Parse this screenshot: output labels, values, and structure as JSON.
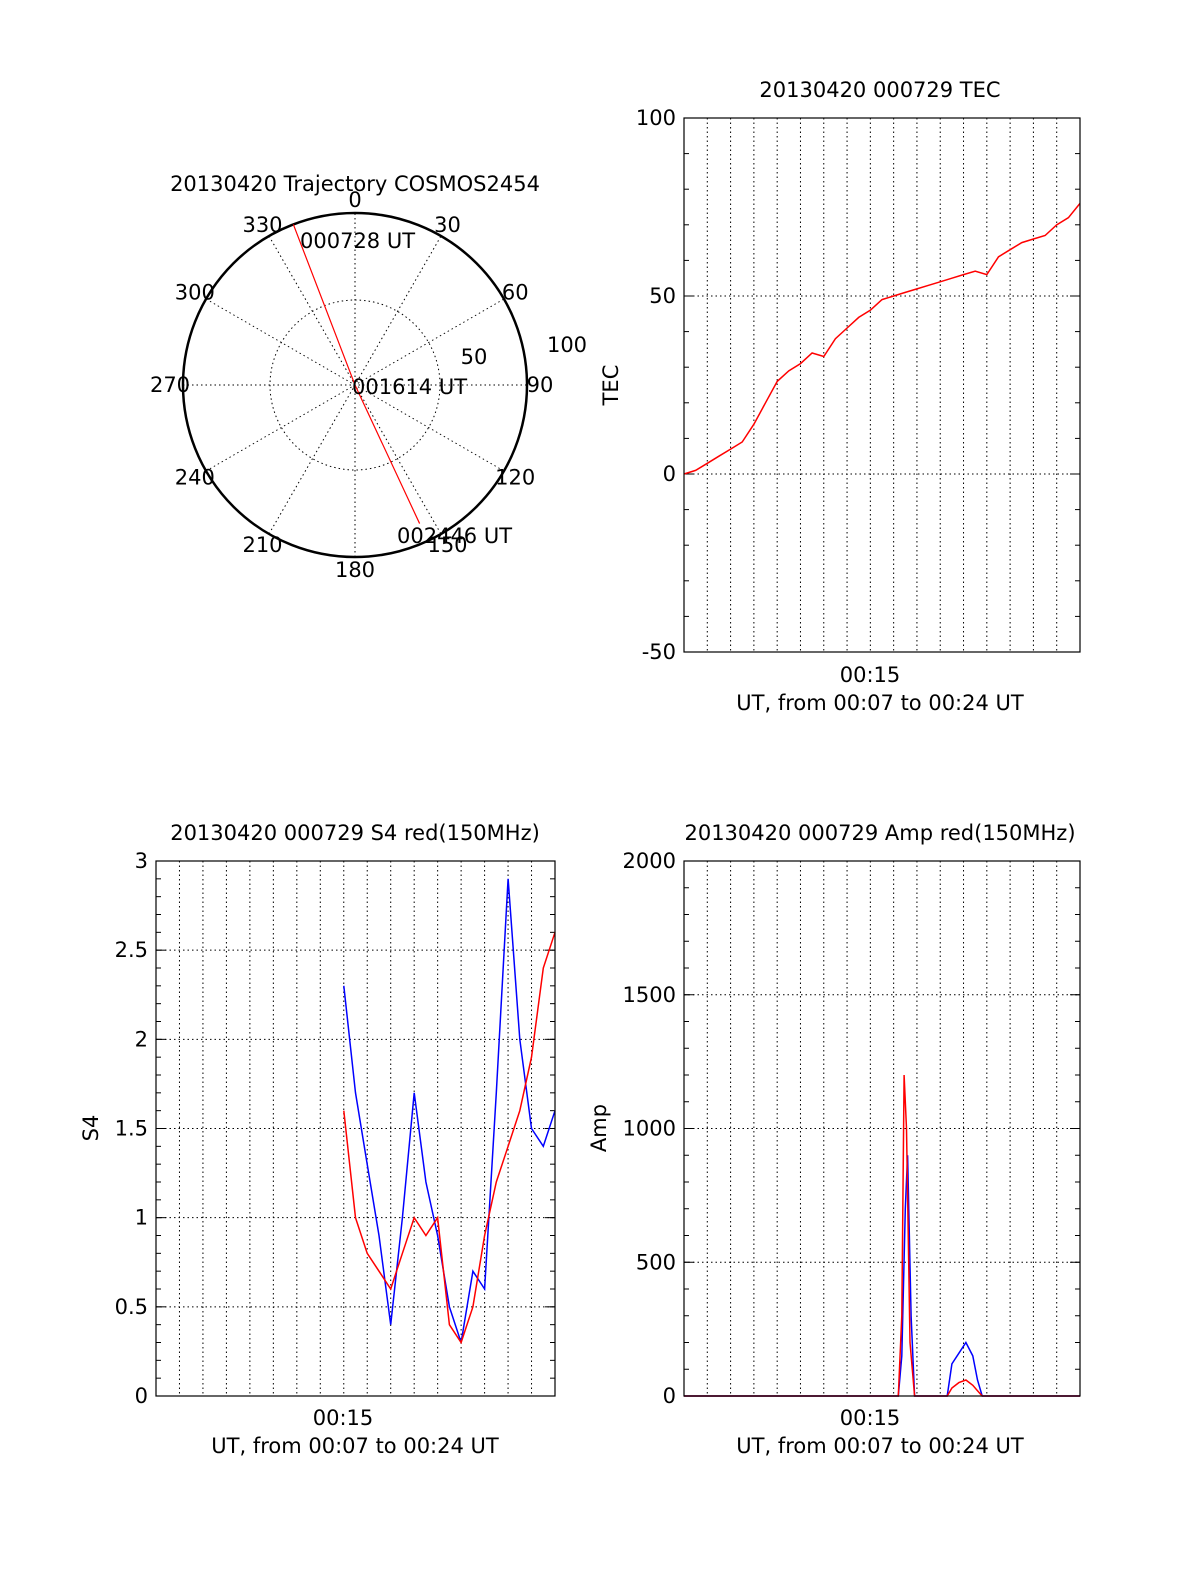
{
  "chart_data": [
    {
      "type": "polar",
      "title": "20130420 Trajectory COSMOS2454",
      "azimuth_ticks": [
        "0",
        "30",
        "60",
        "90",
        "120",
        "150",
        "180",
        "210",
        "240",
        "270",
        "300",
        "330"
      ],
      "radial_ticks": [
        "50",
        "100"
      ],
      "color": "#ff0000",
      "trajectory": [
        {
          "label": "000728 UT",
          "azimuth": 339,
          "elevation": 0
        },
        {
          "label": "001614 UT",
          "azimuth": 0,
          "elevation": 90
        },
        {
          "label": "002446 UT",
          "azimuth": 155,
          "elevation": 10
        }
      ]
    },
    {
      "type": "line",
      "title": "20130420 000729 TEC",
      "ylabel": "TEC",
      "xlabel": "UT, from 00:07 to 00:24 UT",
      "xtick_label": "00:15",
      "ylim": [
        -50,
        100
      ],
      "yticks": [
        "-50",
        "0",
        "50",
        "100"
      ],
      "grid": true,
      "color": "#ff0000",
      "series": [
        {
          "x": [
            0,
            0.5,
            1,
            1.5,
            2,
            2.5,
            3,
            3.5,
            4,
            4.5,
            5,
            5.5,
            6,
            6.5,
            7,
            7.5,
            8,
            8.5,
            9,
            9.5,
            10,
            10.5,
            11,
            11.5,
            12,
            12.5,
            13,
            13.5,
            14,
            14.5,
            15,
            15.5,
            16,
            16.5,
            17
          ],
          "values": [
            0,
            1,
            3,
            5,
            7,
            9,
            14,
            20,
            26,
            29,
            31,
            34,
            33,
            38,
            41,
            44,
            46,
            49,
            50,
            51,
            52,
            53,
            54,
            55,
            56,
            57,
            56,
            61,
            63,
            65,
            66,
            67,
            70,
            72,
            76
          ]
        }
      ]
    },
    {
      "type": "line",
      "title": "20130420 000729 S4 red(150MHz)",
      "ylabel": "S4",
      "xlabel": "UT, from 00:07 to 00:24 UT",
      "xtick_label": "00:15",
      "ylim": [
        0,
        3
      ],
      "yticks": [
        "0",
        "0.5",
        "1",
        "1.5",
        "2",
        "2.5",
        "3"
      ],
      "grid": true,
      "series": [
        {
          "color": "#0000ff",
          "x": [
            8,
            8.5,
            9,
            9.5,
            10,
            10.5,
            11,
            11.5,
            12,
            12.5,
            13,
            13.5,
            14,
            14.5,
            15,
            15.5,
            16,
            16.5,
            17
          ],
          "values": [
            2.3,
            1.7,
            1.3,
            0.9,
            0.4,
            1.0,
            1.7,
            1.2,
            0.9,
            0.5,
            0.3,
            0.7,
            0.6,
            1.7,
            2.9,
            2.0,
            1.5,
            1.4,
            1.6
          ]
        },
        {
          "color": "#ff0000",
          "x": [
            8,
            8.5,
            9,
            9.5,
            10,
            10.5,
            11,
            11.5,
            12,
            12.5,
            13,
            13.5,
            14,
            14.5,
            15,
            15.5,
            16,
            16.5,
            17
          ],
          "values": [
            1.6,
            1.0,
            0.8,
            0.7,
            0.6,
            0.8,
            1.0,
            0.9,
            1.0,
            0.4,
            0.3,
            0.5,
            0.9,
            1.2,
            1.4,
            1.6,
            1.9,
            2.4,
            2.6
          ]
        }
      ]
    },
    {
      "type": "line",
      "title": "20130420 000729 Amp red(150MHz)",
      "ylabel": "Amp",
      "xlabel": "UT, from 00:07 to 00:24 UT",
      "xtick_label": "00:15",
      "ylim": [
        0,
        2000
      ],
      "yticks": [
        "0",
        "500",
        "1000",
        "1500",
        "2000"
      ],
      "grid": true,
      "series": [
        {
          "color": "#0000ff",
          "x": [
            0,
            9.2,
            9.35,
            9.5,
            9.6,
            9.75,
            9.9,
            11.3,
            11.5,
            11.8,
            12.1,
            12.4,
            12.6,
            12.8,
            17
          ],
          "values": [
            0,
            0,
            150,
            700,
            900,
            300,
            0,
            0,
            120,
            160,
            200,
            150,
            60,
            0,
            0
          ]
        },
        {
          "color": "#ff0000",
          "x": [
            0,
            9.2,
            9.35,
            9.45,
            9.55,
            9.7,
            9.9,
            11.3,
            11.5,
            11.8,
            12.1,
            12.4,
            12.6,
            12.8,
            17
          ],
          "values": [
            0,
            0,
            300,
            1200,
            1000,
            200,
            0,
            0,
            30,
            50,
            60,
            40,
            20,
            0,
            0
          ]
        }
      ]
    }
  ]
}
